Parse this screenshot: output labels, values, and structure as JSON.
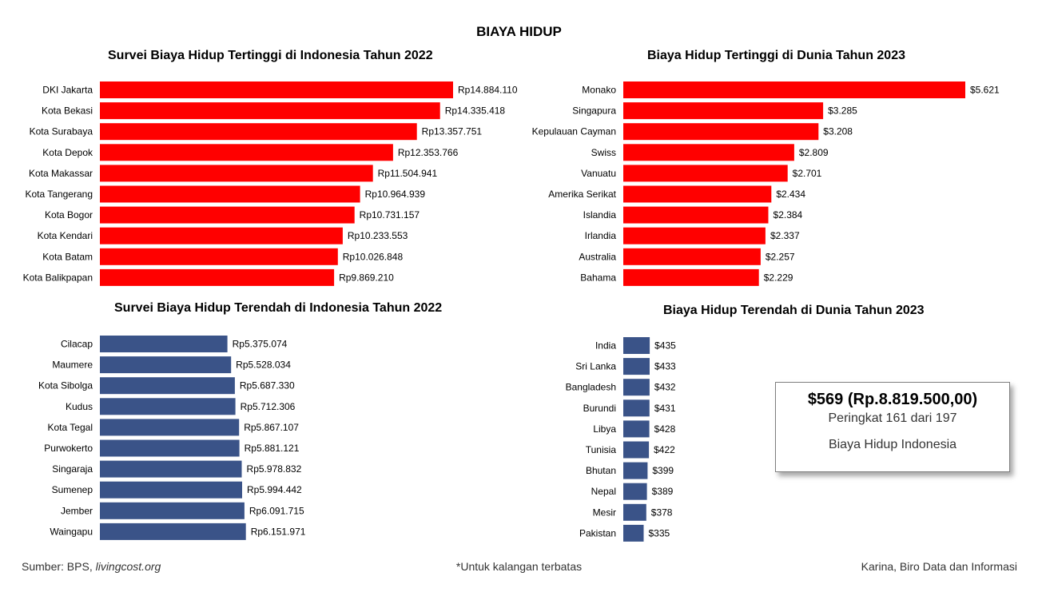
{
  "page": {
    "title": "BIAYA HIDUP",
    "footer_source_label": "Sumber: BPS, ",
    "footer_source_site": "livingcost.org",
    "footer_note": "*Untuk kalangan terbatas",
    "footer_credit": "Karina, Biro Data dan Informasi"
  },
  "colors": {
    "high": "#ff0000",
    "low": "#3a5388"
  },
  "info_box": {
    "headline": "$569 (Rp.8.819.500,00)",
    "rank": "Peringkat 161 dari 197",
    "caption": "Biaya Hidup Indonesia"
  },
  "chart_data": [
    {
      "type": "bar",
      "orientation": "horizontal",
      "title": "Survei Biaya Hidup Tertinggi di Indonesia Tahun 2022",
      "categories": [
        "DKI Jakarta",
        "Kota Bekasi",
        "Kota Surabaya",
        "Kota Depok",
        "Kota Makassar",
        "Kota Tangerang",
        "Kota Bogor",
        "Kota Kendari",
        "Kota Batam",
        "Kota Balikpapan"
      ],
      "values": [
        14884110,
        14335418,
        13357751,
        12353766,
        11504941,
        10964939,
        10731157,
        10233553,
        10026848,
        9869210
      ],
      "value_labels": [
        "Rp14.884.110",
        "Rp14.335.418",
        "Rp13.357.751",
        "Rp12.353.766",
        "Rp11.504.941",
        "Rp10.964.939",
        "Rp10.731.157",
        "Rp10.233.553",
        "Rp10.026.848",
        "Rp9.869.210"
      ],
      "xlim": [
        0,
        14884110
      ],
      "color": "#ff0000"
    },
    {
      "type": "bar",
      "orientation": "horizontal",
      "title": "Biaya Hidup Tertinggi di Dunia Tahun 2023",
      "categories": [
        "Monako",
        "Singapura",
        "Kepulauan Cayman",
        "Swiss",
        "Vanuatu",
        "Amerika Serikat",
        "Islandia",
        "Irlandia",
        "Australia",
        "Bahama"
      ],
      "values": [
        5621,
        3285,
        3208,
        2809,
        2701,
        2434,
        2384,
        2337,
        2257,
        2229
      ],
      "value_labels": [
        "$5.621",
        "$3.285",
        "$3.208",
        "$2.809",
        "$2.701",
        "$2.434",
        "$2.384",
        "$2.337",
        "$2.257",
        "$2.229"
      ],
      "xlim": [
        0,
        5621
      ],
      "color": "#ff0000"
    },
    {
      "type": "bar",
      "orientation": "horizontal",
      "title": "Survei Biaya Hidup Terendah di Indonesia Tahun 2022",
      "categories": [
        "Cilacap",
        "Maumere",
        "Kota Sibolga",
        "Kudus",
        "Kota Tegal",
        "Purwokerto",
        "Singaraja",
        "Sumenep",
        "Jember",
        "Waingapu"
      ],
      "values": [
        5375074,
        5528034,
        5687330,
        5712306,
        5867107,
        5881121,
        5978832,
        5994442,
        6091715,
        6151971
      ],
      "value_labels": [
        "Rp5.375.074",
        "Rp5.528.034",
        "Rp5.687.330",
        "Rp5.712.306",
        "Rp5.867.107",
        "Rp5.881.121",
        "Rp5.978.832",
        "Rp5.994.442",
        "Rp6.091.715",
        "Rp6.151.971"
      ],
      "xlim": [
        0,
        14884110
      ],
      "color": "#3a5388"
    },
    {
      "type": "bar",
      "orientation": "horizontal",
      "title": "Biaya Hidup Terendah di Dunia Tahun 2023",
      "categories": [
        "India",
        "Sri Lanka",
        "Bangladesh",
        "Burundi",
        "Libya",
        "Tunisia",
        "Bhutan",
        "Nepal",
        "Mesir",
        "Pakistan"
      ],
      "values": [
        435,
        433,
        432,
        431,
        428,
        422,
        399,
        389,
        378,
        335
      ],
      "value_labels": [
        "$435",
        "$433",
        "$432",
        "$431",
        "$428",
        "$422",
        "$399",
        "$389",
        "$378",
        "$335"
      ],
      "xlim": [
        0,
        5621
      ],
      "color": "#3a5388"
    }
  ]
}
